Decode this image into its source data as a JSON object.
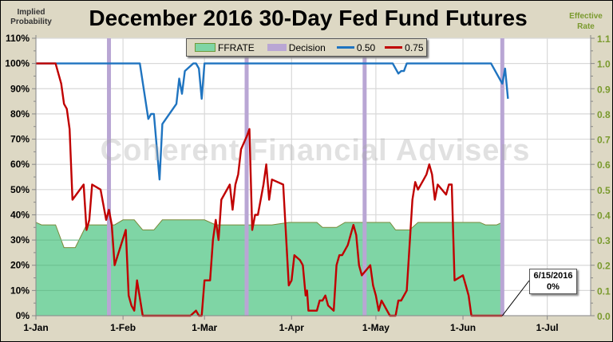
{
  "title": "December 2016 30-Day Fed Fund Futures",
  "y_left_label": [
    "Implied",
    "Probability"
  ],
  "y_right_label": [
    "Effective",
    "Rate"
  ],
  "watermark": "Coherent Financial Advisers",
  "legend": [
    {
      "name": "FFRATE",
      "color": "#7fd5a5",
      "type": "area"
    },
    {
      "name": "Decision",
      "color": "#b9a6d4",
      "type": "bar"
    },
    {
      "name": "0.50",
      "color": "#1f74c0",
      "type": "line"
    },
    {
      "name": "0.75",
      "color": "#c00000",
      "type": "line"
    }
  ],
  "annotation": {
    "date": "6/15/2016",
    "value": "0%"
  },
  "chart_data": {
    "type": "line",
    "title": "December 2016 30-Day Fed Fund Futures",
    "xlabel": "",
    "ylabel": "Implied Probability",
    "y2label": "Effective Rate",
    "x_ticks": [
      "1-Jan",
      "1-Feb",
      "1-Mar",
      "1-Apr",
      "1-May",
      "1-Jun",
      "1-Jul"
    ],
    "x_tick_days": [
      0,
      31,
      60,
      91,
      121,
      152,
      182
    ],
    "y_ticks": [
      "0%",
      "10%",
      "20%",
      "30%",
      "40%",
      "50%",
      "60%",
      "70%",
      "80%",
      "90%",
      "100%",
      "110%"
    ],
    "y2_ticks": [
      "0.0",
      "0.1",
      "0.2",
      "0.3",
      "0.4",
      "0.5",
      "0.6",
      "0.7",
      "0.8",
      "0.9",
      "1.0",
      "1.1"
    ],
    "ylim": [
      0,
      110
    ],
    "y2lim": [
      0,
      1.1
    ],
    "grid": true,
    "legend_position": "top",
    "decision_days": [
      26,
      75,
      117,
      166
    ],
    "series": [
      {
        "name": "FFRATE",
        "axis": "right",
        "type": "area",
        "points": [
          [
            0,
            0.37
          ],
          [
            2,
            0.36
          ],
          [
            7,
            0.36
          ],
          [
            10,
            0.27
          ],
          [
            14,
            0.27
          ],
          [
            18,
            0.36
          ],
          [
            26,
            0.36
          ],
          [
            28,
            0.36
          ],
          [
            31,
            0.38
          ],
          [
            35,
            0.38
          ],
          [
            38,
            0.34
          ],
          [
            42,
            0.34
          ],
          [
            45,
            0.38
          ],
          [
            55,
            0.38
          ],
          [
            60,
            0.38
          ],
          [
            64,
            0.36
          ],
          [
            75,
            0.36
          ],
          [
            84,
            0.36
          ],
          [
            90,
            0.37
          ],
          [
            100,
            0.37
          ],
          [
            102,
            0.35
          ],
          [
            107,
            0.35
          ],
          [
            110,
            0.37
          ],
          [
            126,
            0.37
          ],
          [
            128,
            0.34
          ],
          [
            133,
            0.34
          ],
          [
            136,
            0.37
          ],
          [
            158,
            0.37
          ],
          [
            160,
            0.36
          ],
          [
            164,
            0.36
          ],
          [
            166,
            0.37
          ]
        ]
      },
      {
        "name": "0.50",
        "axis": "left",
        "type": "line",
        "points": [
          [
            0,
            100
          ],
          [
            37,
            100
          ],
          [
            40,
            78
          ],
          [
            41,
            80
          ],
          [
            42,
            80
          ],
          [
            44,
            54
          ],
          [
            45,
            76
          ],
          [
            50,
            84
          ],
          [
            51,
            94
          ],
          [
            52,
            88
          ],
          [
            53,
            97
          ],
          [
            56,
            100
          ],
          [
            57,
            100
          ],
          [
            58,
            98
          ],
          [
            59,
            86
          ],
          [
            60,
            100
          ],
          [
            127,
            100
          ],
          [
            129,
            96
          ],
          [
            130,
            97
          ],
          [
            131,
            97
          ],
          [
            132,
            100
          ],
          [
            162,
            100
          ],
          [
            166,
            92
          ],
          [
            167,
            98
          ],
          [
            168,
            86
          ]
        ]
      },
      {
        "name": "0.75",
        "axis": "left",
        "type": "line",
        "points": [
          [
            0,
            100
          ],
          [
            7,
            100
          ],
          [
            9,
            92
          ],
          [
            10,
            84
          ],
          [
            11,
            82
          ],
          [
            12,
            74
          ],
          [
            13,
            46
          ],
          [
            17,
            52
          ],
          [
            18,
            34
          ],
          [
            19,
            38
          ],
          [
            20,
            52
          ],
          [
            23,
            50
          ],
          [
            25,
            38
          ],
          [
            26,
            42
          ],
          [
            27,
            36
          ],
          [
            28,
            20
          ],
          [
            32,
            34
          ],
          [
            33,
            8
          ],
          [
            34,
            4
          ],
          [
            35,
            2
          ],
          [
            36,
            14
          ],
          [
            38,
            0
          ],
          [
            55,
            0
          ],
          [
            57,
            2
          ],
          [
            58,
            0
          ],
          [
            59,
            0
          ],
          [
            60,
            14
          ],
          [
            62,
            14
          ],
          [
            63,
            30
          ],
          [
            64,
            38
          ],
          [
            65,
            30
          ],
          [
            66,
            46
          ],
          [
            69,
            52
          ],
          [
            70,
            42
          ],
          [
            71,
            52
          ],
          [
            72,
            56
          ],
          [
            73,
            66
          ],
          [
            75,
            71
          ],
          [
            76,
            74
          ],
          [
            77,
            34
          ],
          [
            78,
            40
          ],
          [
            79,
            40
          ],
          [
            81,
            52
          ],
          [
            82,
            60
          ],
          [
            83,
            46
          ],
          [
            84,
            54
          ],
          [
            88,
            52
          ],
          [
            90,
            12
          ],
          [
            91,
            14
          ],
          [
            92,
            24
          ],
          [
            94,
            22
          ],
          [
            95,
            20
          ],
          [
            96,
            8
          ],
          [
            96.5,
            10
          ],
          [
            97,
            2
          ],
          [
            100,
            2
          ],
          [
            101,
            6
          ],
          [
            102,
            6
          ],
          [
            103,
            8
          ],
          [
            104,
            4
          ],
          [
            106,
            2
          ],
          [
            107,
            20
          ],
          [
            108,
            24
          ],
          [
            109,
            24
          ],
          [
            111,
            28
          ],
          [
            113,
            36
          ],
          [
            114,
            32
          ],
          [
            115,
            20
          ],
          [
            116,
            16
          ],
          [
            119,
            20
          ],
          [
            120,
            12
          ],
          [
            121,
            8
          ],
          [
            122,
            2
          ],
          [
            123,
            6
          ],
          [
            125,
            2
          ],
          [
            126,
            0
          ],
          [
            128,
            0
          ],
          [
            129,
            6
          ],
          [
            130,
            6
          ],
          [
            132,
            10
          ],
          [
            134,
            46
          ],
          [
            135,
            53
          ],
          [
            136,
            50
          ],
          [
            138,
            54
          ],
          [
            139,
            56
          ],
          [
            140,
            60
          ],
          [
            141,
            56
          ],
          [
            142,
            46
          ],
          [
            143,
            52
          ],
          [
            146,
            48
          ],
          [
            147,
            52
          ],
          [
            148,
            52
          ],
          [
            149,
            14
          ],
          [
            152,
            16
          ],
          [
            153,
            12
          ],
          [
            154,
            8
          ],
          [
            155,
            0
          ],
          [
            158,
            0
          ],
          [
            166,
            0
          ]
        ]
      }
    ]
  }
}
